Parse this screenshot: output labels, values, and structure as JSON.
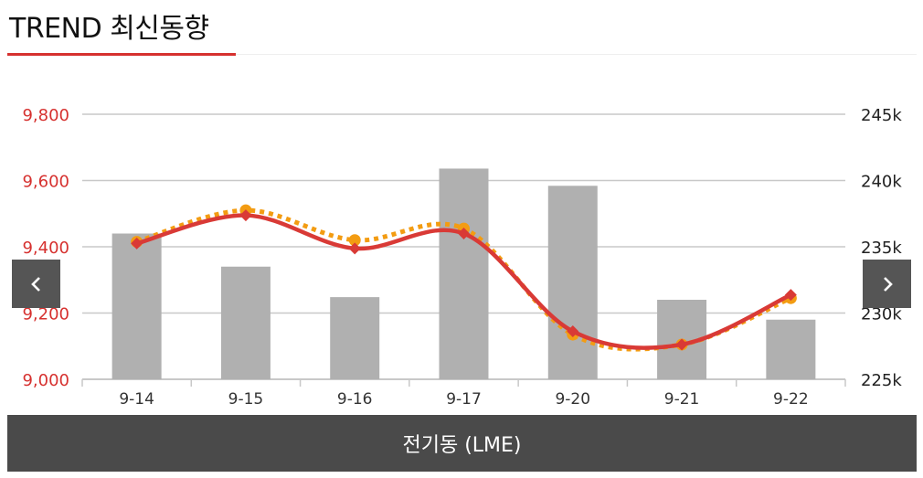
{
  "header": {
    "title": "TREND 최신동향"
  },
  "nav": {
    "prev_icon": "chevron-left-icon",
    "next_icon": "chevron-right-icon"
  },
  "footer": {
    "label": "전기동 (LME)"
  },
  "colors": {
    "accent": "#d6312f",
    "bar": "#b0b0b0",
    "dotted_line": "#f39c12",
    "solid_line": "#d93a36"
  },
  "chart_data": {
    "type": "bar",
    "categories": [
      "9-14",
      "9-15",
      "9-16",
      "9-17",
      "9-20",
      "9-21",
      "9-22"
    ],
    "grid": true,
    "left_axis": {
      "ticks": [
        "9,000",
        "9,200",
        "9,400",
        "9,600",
        "9,800"
      ],
      "min": 9000,
      "max": 9800
    },
    "right_axis": {
      "ticks": [
        "225k",
        "230k",
        "235k",
        "240k",
        "245k"
      ],
      "min": 225000,
      "max": 245000
    },
    "series": [
      {
        "type": "bar",
        "axis": "right",
        "values": [
          236000,
          233500,
          231200,
          240900,
          239600,
          231000,
          229500
        ]
      },
      {
        "type": "line",
        "style": "dotted",
        "axis": "left",
        "values": [
          9415,
          9510,
          9420,
          9455,
          9135,
          9105,
          9245
        ]
      },
      {
        "type": "line",
        "style": "solid",
        "axis": "left",
        "values": [
          9410,
          9495,
          9395,
          9440,
          9145,
          9105,
          9255
        ]
      }
    ]
  }
}
